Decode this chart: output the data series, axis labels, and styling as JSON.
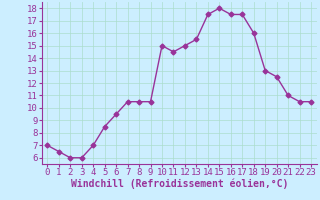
{
  "x": [
    0,
    1,
    2,
    3,
    4,
    5,
    6,
    7,
    8,
    9,
    10,
    11,
    12,
    13,
    14,
    15,
    16,
    17,
    18,
    19,
    20,
    21,
    22,
    23
  ],
  "y": [
    7.0,
    6.5,
    6.0,
    6.0,
    7.0,
    8.5,
    9.5,
    10.5,
    10.5,
    10.5,
    15.0,
    14.5,
    15.0,
    15.5,
    17.5,
    18.0,
    17.5,
    17.5,
    16.0,
    13.0,
    12.5,
    11.0,
    10.5,
    10.5
  ],
  "line_color": "#993399",
  "marker": "D",
  "marker_size": 2.5,
  "bg_color": "#cceeff",
  "grid_color": "#aaddcc",
  "xlabel": "Windchill (Refroidissement éolien,°C)",
  "xlabel_color": "#993399",
  "tick_color": "#993399",
  "ylim": [
    5.5,
    18.5
  ],
  "xlim": [
    -0.5,
    23.5
  ],
  "yticks": [
    6,
    7,
    8,
    9,
    10,
    11,
    12,
    13,
    14,
    15,
    16,
    17,
    18
  ],
  "xticks": [
    0,
    1,
    2,
    3,
    4,
    5,
    6,
    7,
    8,
    9,
    10,
    11,
    12,
    13,
    14,
    15,
    16,
    17,
    18,
    19,
    20,
    21,
    22,
    23
  ],
  "font_size": 6.5,
  "xlabel_fontsize": 7
}
